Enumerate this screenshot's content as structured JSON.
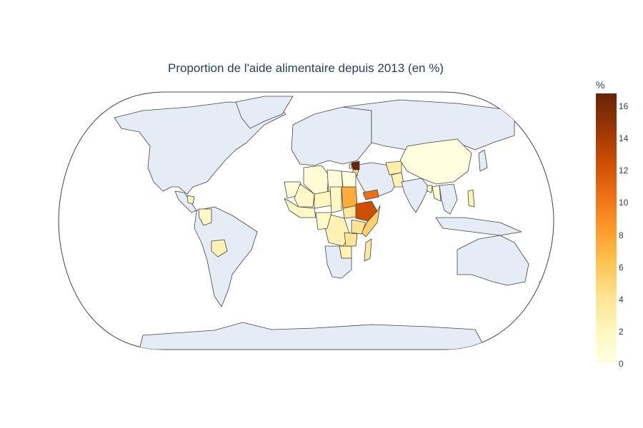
{
  "title": "Proportion de l'aide alimentaire depuis 2013 (en %)",
  "colorbar": {
    "title": "%",
    "ticks": [
      "0",
      "2",
      "4",
      "6",
      "8",
      "10",
      "12",
      "14",
      "16"
    ],
    "range": [
      0,
      16.8
    ],
    "scale": [
      "#ffffe5",
      "#fff7bc",
      "#fee391",
      "#fec44f",
      "#fe9929",
      "#ec7014",
      "#cc4c02",
      "#993404",
      "#662506"
    ]
  },
  "colors": {
    "land_no_data": "#e5ecf6",
    "border": "#444444",
    "ocean": "#ffffff",
    "title_text": "#2a3f5f"
  },
  "chart_data": {
    "type": "choropleth",
    "projection": "natural earth",
    "title": "Proportion de l'aide alimentaire depuis 2013 (en %)",
    "colorbar_title": "%",
    "zrange": [
      0,
      16.8
    ],
    "countries": [
      {
        "name": "Syria",
        "value": 16.8
      },
      {
        "name": "Ethiopia",
        "value": 12.5
      },
      {
        "name": "Yemen",
        "value": 10.5
      },
      {
        "name": "Sudan",
        "value": 7.5
      },
      {
        "name": "Somalia",
        "value": 5.5
      },
      {
        "name": "Kenya",
        "value": 4.0
      },
      {
        "name": "Madagascar",
        "value": 3.5
      },
      {
        "name": "Jordan",
        "value": 4.5
      },
      {
        "name": "South Sudan",
        "value": 3.5
      },
      {
        "name": "Congo (DRC)",
        "value": 2.5
      },
      {
        "name": "Afghanistan",
        "value": 3.0
      },
      {
        "name": "Pakistan",
        "value": 2.5
      },
      {
        "name": "Bolivia",
        "value": 2.5
      },
      {
        "name": "Niger",
        "value": 2.0
      },
      {
        "name": "Chad",
        "value": 1.5
      },
      {
        "name": "Mali",
        "value": 1.5
      },
      {
        "name": "Zimbabwe",
        "value": 2.5
      },
      {
        "name": "Colombia",
        "value": 1.5
      },
      {
        "name": "Nicaragua",
        "value": 2.0
      },
      {
        "name": "Philippines",
        "value": 2.5
      },
      {
        "name": "Lebanon",
        "value": 2.0
      },
      {
        "name": "China",
        "value": 0.3
      },
      {
        "name": "Algeria",
        "value": 0.8
      },
      {
        "name": "Libya",
        "value": 0.6
      },
      {
        "name": "Mauritania",
        "value": 0.7
      },
      {
        "name": "Egypt",
        "value": 0.5
      },
      {
        "name": "Bangladesh",
        "value": 1.0
      },
      {
        "name": "Myanmar",
        "value": 0.8
      }
    ]
  }
}
